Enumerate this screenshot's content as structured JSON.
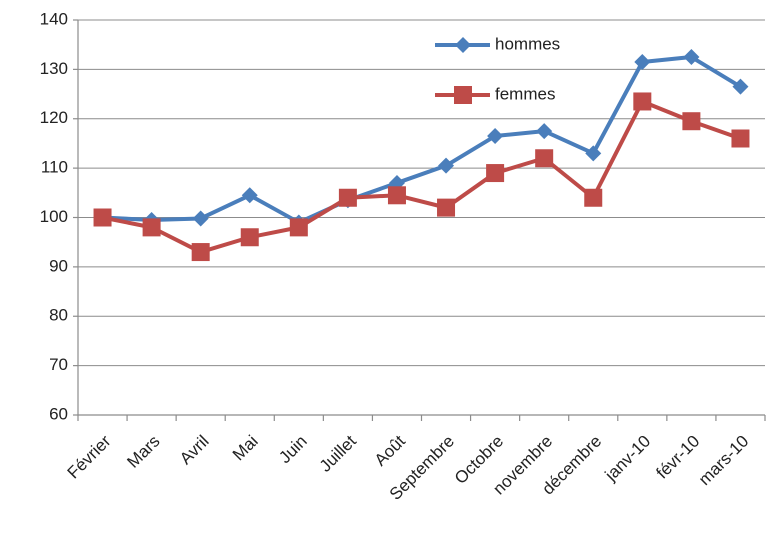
{
  "chart_data": {
    "type": "line",
    "categories": [
      "Février",
      "Mars",
      "Avril",
      "Mai",
      "Juin",
      "Juillet",
      "Août",
      "Septembre",
      "Octobre",
      "novembre",
      "décembre",
      "janv-10",
      "févr-10",
      "mars-10"
    ],
    "series": [
      {
        "name": "hommes",
        "color": "#4a7ebb",
        "marker": "diamond",
        "values": [
          100,
          99.5,
          99.8,
          104.5,
          99,
          103.5,
          107,
          110.5,
          116.5,
          117.5,
          113,
          131.5,
          132.5,
          126.5
        ]
      },
      {
        "name": "femmes",
        "color": "#be4b48",
        "marker": "square",
        "values": [
          100,
          98,
          93,
          96,
          98,
          104,
          104.5,
          102,
          109,
          112,
          104,
          123.5,
          119.5,
          116
        ]
      }
    ],
    "ylim": [
      60,
      140
    ],
    "yticks": [
      60,
      70,
      80,
      90,
      100,
      110,
      120,
      130,
      140
    ],
    "grid": true,
    "legend": "top-right"
  }
}
